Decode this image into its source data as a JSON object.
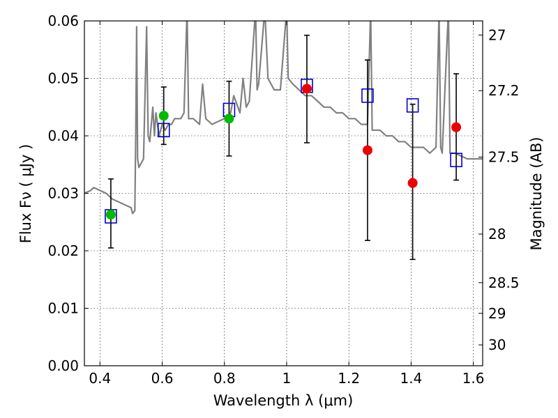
{
  "chart_data": {
    "type": "scatter",
    "xlabel": "Wavelength  λ (μm)",
    "ylabel": "Flux  Fν  ( μJy )",
    "ylabel_right": "Magnitude (AB)",
    "xlim": [
      0.35,
      1.63
    ],
    "ylim": [
      0.0,
      0.06
    ],
    "grid": true,
    "x_ticks": [
      {
        "v": 0.4,
        "label": "0.4"
      },
      {
        "v": 0.6,
        "label": "0.6"
      },
      {
        "v": 0.8,
        "label": "0.8"
      },
      {
        "v": 1.0,
        "label": "1"
      },
      {
        "v": 1.2,
        "label": "1.2"
      },
      {
        "v": 1.4,
        "label": "1.4"
      },
      {
        "v": 1.6,
        "label": "1.6"
      }
    ],
    "y_ticks": [
      {
        "v": 0.0,
        "label": "0.00"
      },
      {
        "v": 0.01,
        "label": "0.01"
      },
      {
        "v": 0.02,
        "label": "0.02"
      },
      {
        "v": 0.03,
        "label": "0.03"
      },
      {
        "v": 0.04,
        "label": "0.04"
      },
      {
        "v": 0.05,
        "label": "0.05"
      },
      {
        "v": 0.06,
        "label": "0.06"
      }
    ],
    "mag_ticks": [
      {
        "v": 27,
        "label": "27"
      },
      {
        "v": 27.2,
        "label": "27.2"
      },
      {
        "v": 27.5,
        "label": "27.5"
      },
      {
        "v": 28,
        "label": "28"
      },
      {
        "v": 28.5,
        "label": "28.5"
      },
      {
        "v": 29,
        "label": "29"
      },
      {
        "v": 30,
        "label": "30"
      }
    ],
    "model_spectrum": {
      "color": "#808080",
      "points": [
        [
          0.35,
          0.03
        ],
        [
          0.37,
          0.0305
        ],
        [
          0.38,
          0.031
        ],
        [
          0.4,
          0.0305
        ],
        [
          0.42,
          0.03
        ],
        [
          0.44,
          0.029
        ],
        [
          0.46,
          0.0285
        ],
        [
          0.48,
          0.028
        ],
        [
          0.5,
          0.0275
        ],
        [
          0.505,
          0.0265
        ],
        [
          0.512,
          0.027
        ],
        [
          0.515,
          0.04
        ],
        [
          0.518,
          0.059
        ],
        [
          0.521,
          0.036
        ],
        [
          0.525,
          0.0345
        ],
        [
          0.53,
          0.035
        ],
        [
          0.54,
          0.036
        ],
        [
          0.55,
          0.059
        ],
        [
          0.555,
          0.04
        ],
        [
          0.56,
          0.039
        ],
        [
          0.57,
          0.045
        ],
        [
          0.575,
          0.04
        ],
        [
          0.58,
          0.044
        ],
        [
          0.59,
          0.04
        ],
        [
          0.6,
          0.042
        ],
        [
          0.61,
          0.041
        ],
        [
          0.62,
          0.042
        ],
        [
          0.63,
          0.042
        ],
        [
          0.64,
          0.043
        ],
        [
          0.66,
          0.043
        ],
        [
          0.67,
          0.044
        ],
        [
          0.68,
          0.062
        ],
        [
          0.685,
          0.043
        ],
        [
          0.7,
          0.043
        ],
        [
          0.72,
          0.042
        ],
        [
          0.73,
          0.049
        ],
        [
          0.74,
          0.043
        ],
        [
          0.76,
          0.042
        ],
        [
          0.78,
          0.0425
        ],
        [
          0.8,
          0.043
        ],
        [
          0.82,
          0.044
        ],
        [
          0.83,
          0.047
        ],
        [
          0.85,
          0.044
        ],
        [
          0.86,
          0.05
        ],
        [
          0.87,
          0.045
        ],
        [
          0.88,
          0.046
        ],
        [
          0.9,
          0.062
        ],
        [
          0.905,
          0.048
        ],
        [
          0.91,
          0.049
        ],
        [
          0.93,
          0.062
        ],
        [
          0.94,
          0.05
        ],
        [
          0.96,
          0.048
        ],
        [
          0.98,
          0.048
        ],
        [
          1.0,
          0.062
        ],
        [
          1.005,
          0.05
        ],
        [
          1.02,
          0.049
        ],
        [
          1.04,
          0.048
        ],
        [
          1.06,
          0.047
        ],
        [
          1.08,
          0.047
        ],
        [
          1.1,
          0.046
        ],
        [
          1.12,
          0.045
        ],
        [
          1.14,
          0.045
        ],
        [
          1.16,
          0.044
        ],
        [
          1.18,
          0.044
        ],
        [
          1.2,
          0.043
        ],
        [
          1.22,
          0.043
        ],
        [
          1.24,
          0.042
        ],
        [
          1.26,
          0.042
        ],
        [
          1.27,
          0.062
        ],
        [
          1.275,
          0.041
        ],
        [
          1.28,
          0.041
        ],
        [
          1.3,
          0.041
        ],
        [
          1.32,
          0.04
        ],
        [
          1.34,
          0.04
        ],
        [
          1.36,
          0.039
        ],
        [
          1.38,
          0.039
        ],
        [
          1.4,
          0.038
        ],
        [
          1.42,
          0.038
        ],
        [
          1.44,
          0.038
        ],
        [
          1.46,
          0.037
        ],
        [
          1.48,
          0.038
        ],
        [
          1.49,
          0.062
        ],
        [
          1.495,
          0.038
        ],
        [
          1.5,
          0.037
        ],
        [
          1.52,
          0.062
        ],
        [
          1.525,
          0.037
        ],
        [
          1.54,
          0.037
        ],
        [
          1.56,
          0.0365
        ],
        [
          1.58,
          0.036
        ],
        [
          1.6,
          0.036
        ],
        [
          1.63,
          0.036
        ]
      ]
    },
    "green_points": {
      "color": "#00bb00",
      "points": [
        [
          0.435,
          0.0263
        ],
        [
          0.605,
          0.0435
        ],
        [
          0.815,
          0.043
        ]
      ]
    },
    "red_points": {
      "color": "#ee0000",
      "points": [
        [
          1.065,
          0.0482
        ],
        [
          1.26,
          0.0375
        ],
        [
          1.405,
          0.0318
        ],
        [
          1.545,
          0.0415
        ]
      ]
    },
    "blue_squares": {
      "color": "#0000cc",
      "points": [
        [
          0.435,
          0.026
        ],
        [
          0.605,
          0.041
        ],
        [
          0.815,
          0.0445
        ],
        [
          1.065,
          0.0487
        ],
        [
          1.26,
          0.047
        ],
        [
          1.405,
          0.0453
        ],
        [
          1.545,
          0.0358
        ]
      ]
    },
    "error_bars": [
      {
        "x": 0.435,
        "lo": 0.0205,
        "hi": 0.0325
      },
      {
        "x": 0.605,
        "lo": 0.0385,
        "hi": 0.0485
      },
      {
        "x": 0.815,
        "lo": 0.0365,
        "hi": 0.0495
      },
      {
        "x": 1.065,
        "lo": 0.0388,
        "hi": 0.0575
      },
      {
        "x": 1.26,
        "lo": 0.0218,
        "hi": 0.0532
      },
      {
        "x": 1.405,
        "lo": 0.0185,
        "hi": 0.0455
      },
      {
        "x": 1.545,
        "lo": 0.0323,
        "hi": 0.0508
      }
    ]
  }
}
